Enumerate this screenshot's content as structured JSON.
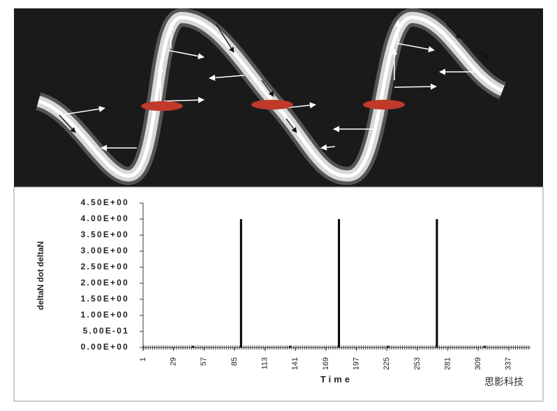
{
  "chart_data": {
    "type": "bar",
    "y_axis_label": "deltaN dot deltaN",
    "x_axis_label": "Time",
    "x": [
      47,
      91,
      136,
      181,
      226,
      271,
      315
    ],
    "values": [
      0.05,
      4,
      0.05,
      4,
      0.05,
      4,
      0.05
    ],
    "color": "#000000",
    "xlim": [
      1,
      357
    ],
    "xticks": [
      1,
      29,
      57,
      85,
      113,
      141,
      169,
      197,
      225,
      253,
      281,
      309,
      337
    ],
    "ylim": [
      0,
      4.5
    ],
    "yticks": [
      {
        "value": 0,
        "label": "0.00E+00"
      },
      {
        "value": 0.5,
        "label": "5.00E-01"
      },
      {
        "value": 1,
        "label": "1.00E+00"
      },
      {
        "value": 1.5,
        "label": "1.50E+00"
      },
      {
        "value": 2,
        "label": "2.00E+00"
      },
      {
        "value": 2.5,
        "label": "2.50E+00"
      },
      {
        "value": 3,
        "label": "3.00E+00"
      },
      {
        "value": 3.5,
        "label": "3.50E+00"
      },
      {
        "value": 4,
        "label": "4.00E+00"
      },
      {
        "value": 4.5,
        "label": "4.50E+00"
      }
    ],
    "grid": false
  },
  "watermark": "思影科技"
}
